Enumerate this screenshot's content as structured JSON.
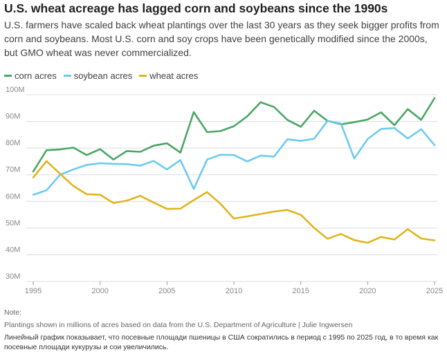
{
  "header": {
    "title": "U.S. wheat acreage has lagged corn and soybeans since the 1990s",
    "subtitle": "U.S. farmers have scaled back wheat plantings over the last 30 years as they seek bigger profits from corn and soybeans. Most U.S. corn and soy crops have been genetically modified since the 2000s, but GMO wheat was never commercialized."
  },
  "footer": {
    "note_label": "Note:",
    "source": "Plantings shown in millions of acres based on data from the U.S. Department of Agriculture | Julie Ingwersen",
    "caption": "Линейный график показывает, что посевные площади пшеницы в США сократились в период с 1995 по 2025 год, в то время как посевные площади кукурузы и сои увеличились."
  },
  "chart_data": {
    "type": "line",
    "title": "U.S. wheat acreage has lagged corn and soybeans since the 1990s",
    "xlabel": "",
    "ylabel": "",
    "unit": "million acres",
    "xlim": [
      1995,
      2025
    ],
    "ylim": [
      30,
      100
    ],
    "grid": true,
    "legend_position": "top-left",
    "x_ticks": [
      1995,
      2000,
      2005,
      2010,
      2015,
      2020,
      2025
    ],
    "x_tick_labels": [
      "1995",
      "2000",
      "2005",
      "2010",
      "2015",
      "2020",
      "2025"
    ],
    "y_ticks": [
      30,
      40,
      50,
      60,
      70,
      80,
      90,
      100
    ],
    "y_tick_labels": [
      "30M",
      "40M",
      "50M",
      "60M",
      "70M",
      "80M",
      "90M",
      "100M"
    ],
    "x": [
      1995,
      1996,
      1997,
      1998,
      1999,
      2000,
      2001,
      2002,
      2003,
      2004,
      2005,
      2006,
      2007,
      2008,
      2009,
      2010,
      2011,
      2012,
      2013,
      2014,
      2015,
      2016,
      2017,
      2018,
      2019,
      2020,
      2021,
      2022,
      2023,
      2024,
      2025
    ],
    "series": [
      {
        "name": "corn acres",
        "color": "#4aa564",
        "values": [
          71.2,
          79.2,
          79.5,
          80.2,
          77.4,
          79.6,
          75.7,
          78.9,
          78.6,
          80.9,
          81.8,
          78.3,
          93.5,
          86.0,
          86.4,
          88.2,
          91.9,
          97.2,
          95.4,
          90.6,
          88.0,
          94.0,
          90.2,
          88.9,
          89.7,
          90.7,
          93.4,
          88.6,
          94.6,
          90.6,
          98.7
        ]
      },
      {
        "name": "soybean acres",
        "color": "#6ccbef",
        "values": [
          62.5,
          64.2,
          70.0,
          72.0,
          73.7,
          74.3,
          74.1,
          74.0,
          73.4,
          75.2,
          72.0,
          75.5,
          64.7,
          75.7,
          77.5,
          77.4,
          75.0,
          77.2,
          76.8,
          83.3,
          82.7,
          83.5,
          90.2,
          89.2,
          76.1,
          83.4,
          87.2,
          87.5,
          83.6,
          87.1,
          81.1
        ]
      },
      {
        "name": "wheat acres",
        "color": "#e0b41b",
        "values": [
          69.0,
          75.1,
          70.4,
          65.8,
          62.7,
          62.5,
          59.4,
          60.3,
          62.1,
          59.6,
          57.2,
          57.3,
          60.5,
          63.5,
          59.1,
          53.6,
          54.4,
          55.3,
          56.2,
          56.8,
          55.0,
          50.1,
          46.0,
          47.8,
          45.5,
          44.5,
          46.7,
          45.7,
          49.6,
          46.1,
          45.4
        ]
      }
    ]
  }
}
